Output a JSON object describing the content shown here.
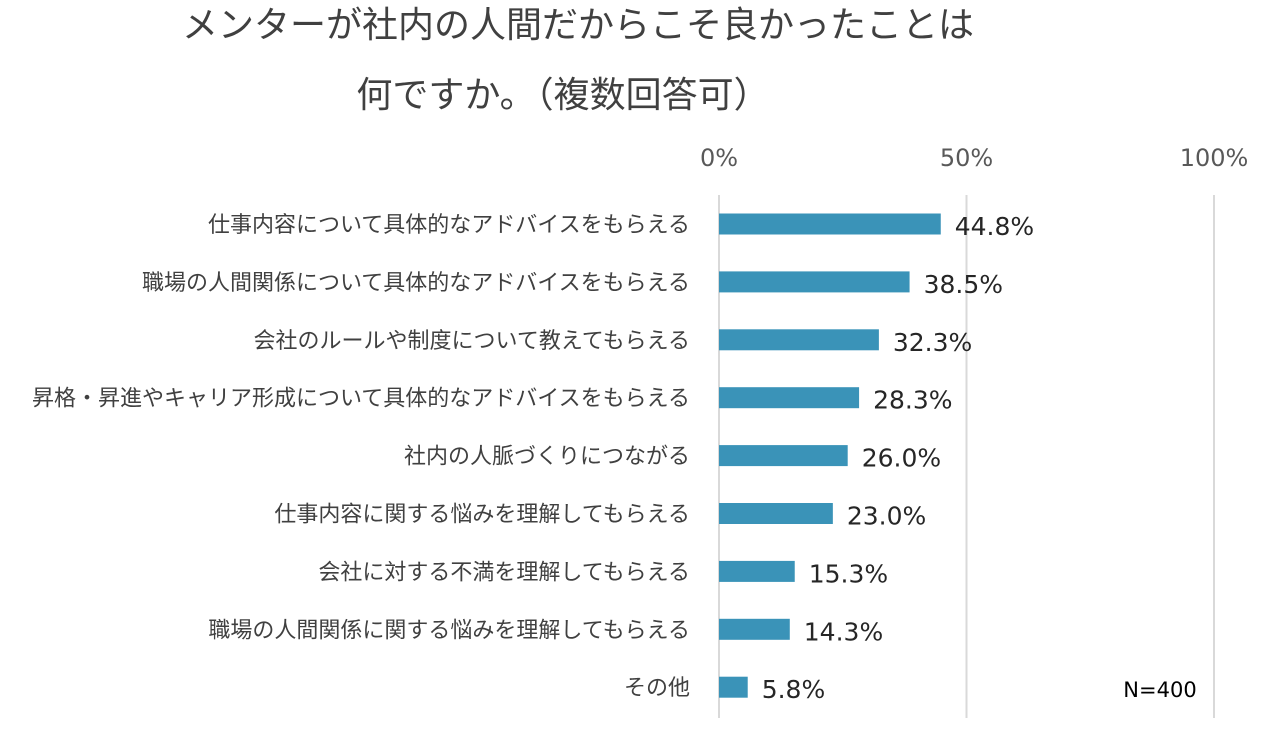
{
  "chart_data": {
    "type": "bar",
    "orientation": "horizontal",
    "title_lines": [
      "メンターが社内の人間だからこそ良かったことは",
      "何ですか。（複数回答可）"
    ],
    "categories": [
      "仕事内容について具体的なアドバイスをもらえる",
      "職場の人間関係について具体的なアドバイスをもらえる",
      "会社のルールや制度について教えてもらえる",
      "昇格・昇進やキャリア形成について具体的なアドバイスをもらえる",
      "社内の人脈づくりにつながる",
      "仕事内容に関する悩みを理解してもらえる",
      "会社に対する不満を理解してもらえる",
      "職場の人間関係に関する悩みを理解してもらえる",
      "その他"
    ],
    "values": [
      44.8,
      38.5,
      32.3,
      28.3,
      26.0,
      23.0,
      15.3,
      14.3,
      5.8
    ],
    "value_labels": [
      "44.8%",
      "38.5%",
      "32.3%",
      "28.3%",
      "26.0%",
      "23.0%",
      "15.3%",
      "14.3%",
      "5.8%"
    ],
    "xlim": [
      0,
      100
    ],
    "tick_values": [
      0,
      50,
      100
    ],
    "tick_labels": [
      "0%",
      "50%",
      "100%"
    ],
    "axis_position": "top",
    "grid": true,
    "legend": null,
    "annotation": "N=400",
    "bar_color": "#3a93b8"
  }
}
